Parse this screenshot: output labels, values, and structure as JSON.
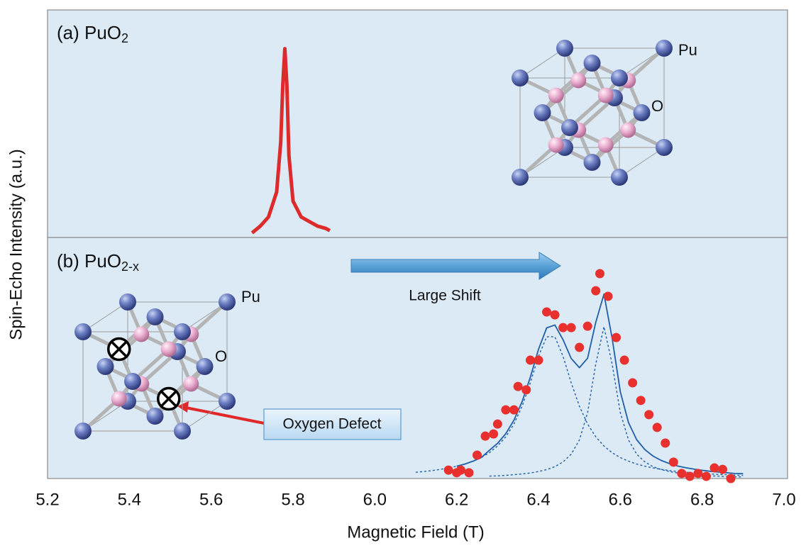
{
  "chart_data": [
    {
      "type": "line",
      "label": "(a) PuO",
      "label_sub": "2",
      "ylabel": "Spin-Echo Intensity (a.u.)",
      "xlim": [
        5.2,
        7.0
      ],
      "ylim": [
        0,
        1
      ],
      "atom_labels": [
        "Pu",
        "O"
      ],
      "series": [
        {
          "color": "#dd2a2a",
          "x": [
            5.7,
            5.72,
            5.74,
            5.76,
            5.77,
            5.775,
            5.78,
            5.785,
            5.79,
            5.8,
            5.82,
            5.84,
            5.86,
            5.88,
            5.89
          ],
          "values": [
            0.02,
            0.05,
            0.09,
            0.2,
            0.42,
            0.67,
            0.83,
            0.67,
            0.36,
            0.16,
            0.09,
            0.07,
            0.05,
            0.04,
            0.03
          ]
        }
      ]
    },
    {
      "type": "line",
      "label": "(b) PuO",
      "label_sub": "2-x",
      "xlabel": "Magnetic Field (T)",
      "xlim": [
        5.2,
        7.0
      ],
      "ylim": [
        0,
        1
      ],
      "atom_labels": [
        "Pu",
        "O"
      ],
      "annotations": [
        "Large Shift",
        "Oxygen Defect"
      ],
      "xticks": [
        {
          "value": 5.2,
          "label": "5.2"
        },
        {
          "value": 5.4,
          "label": "5.4"
        },
        {
          "value": 5.6,
          "label": "5.6"
        },
        {
          "value": 5.8,
          "label": "5.8"
        },
        {
          "value": 6.0,
          "label": "6.0"
        },
        {
          "value": 6.2,
          "label": "6.2"
        },
        {
          "value": 6.4,
          "label": "6.4"
        },
        {
          "value": 6.6,
          "label": "6.6"
        },
        {
          "value": 6.8,
          "label": "6.8"
        },
        {
          "value": 7.0,
          "label": "7.0"
        }
      ],
      "series": [
        {
          "type": "scatter",
          "color": "#e8302e",
          "x": [
            6.18,
            6.2,
            6.21,
            6.23,
            6.25,
            6.27,
            6.29,
            6.3,
            6.32,
            6.34,
            6.35,
            6.37,
            6.38,
            6.4,
            6.42,
            6.44,
            6.46,
            6.48,
            6.5,
            6.52,
            6.54,
            6.55,
            6.57,
            6.59,
            6.61,
            6.63,
            6.65,
            6.67,
            6.69,
            6.71,
            6.73,
            6.75,
            6.77,
            6.79,
            6.81,
            6.83,
            6.85,
            6.87
          ],
          "values": [
            0.035,
            0.024,
            0.035,
            0.024,
            0.097,
            0.176,
            0.185,
            0.226,
            0.285,
            0.285,
            0.382,
            0.368,
            0.491,
            0.491,
            0.691,
            0.679,
            0.626,
            0.626,
            0.544,
            0.632,
            0.779,
            0.85,
            0.756,
            0.585,
            0.491,
            0.397,
            0.324,
            0.265,
            0.212,
            0.147,
            0.068,
            0.021,
            0.009,
            0.021,
            0.009,
            0.044,
            0.038,
            0
          ]
        },
        {
          "type": "line",
          "color": "#1f5fa8",
          "x": [
            6.1,
            6.12,
            6.14,
            6.16,
            6.18,
            6.2,
            6.22,
            6.24,
            6.26,
            6.28,
            6.3,
            6.32,
            6.34,
            6.36,
            6.38,
            6.4,
            6.42,
            6.44,
            6.46,
            6.48,
            6.5,
            6.52,
            6.54,
            6.56,
            6.58,
            6.6,
            6.62,
            6.64,
            6.66,
            6.68,
            6.7,
            6.72,
            6.74,
            6.76,
            6.78,
            6.8,
            6.82,
            6.84,
            6.86,
            6.88,
            6.9
          ],
          "values": [
            null,
            null,
            null,
            null,
            null,
            0.051,
            0.06,
            0.072,
            0.087,
            0.117,
            0.146,
            0.186,
            0.242,
            0.319,
            0.42,
            0.536,
            0.625,
            0.637,
            0.576,
            0.498,
            0.46,
            0.499,
            0.648,
            0.765,
            0.582,
            0.36,
            0.232,
            0.161,
            0.12,
            0.093,
            0.075,
            0.062,
            0.052,
            0.045,
            0.039,
            0.034,
            0.03,
            0.027,
            0.024,
            0.021,
            0.02
          ]
        },
        {
          "type": "line",
          "dashed": true,
          "color": "#1f5fa8",
          "x": [
            6.1,
            6.12,
            6.14,
            6.16,
            6.18,
            6.2,
            6.22,
            6.24,
            6.26,
            6.28,
            6.3,
            6.32,
            6.34,
            6.36,
            6.38,
            6.4,
            6.42,
            6.44,
            6.46,
            6.48,
            6.5,
            6.52,
            6.54,
            6.56,
            6.58,
            6.6,
            6.62,
            6.64,
            6.66,
            6.68,
            6.7,
            6.72,
            6.74,
            6.76,
            6.78,
            6.8,
            6.82,
            6.84,
            6.86,
            6.88,
            6.9
          ],
          "values": [
            0.026,
            0.029,
            0.033,
            0.038,
            0.044,
            0.051,
            0.06,
            0.072,
            0.087,
            0.107,
            0.135,
            0.173,
            0.226,
            0.3,
            0.397,
            0.507,
            0.588,
            0.588,
            0.507,
            0.397,
            0.3,
            0.226,
            0.173,
            0.135,
            0.107,
            0.087,
            0.072,
            0.06,
            0.051,
            0.044,
            0.038,
            0.033,
            0.029,
            0.026,
            0.023,
            0.021,
            0.019,
            0.017,
            0.016,
            0.014,
            0.013
          ]
        },
        {
          "type": "line",
          "dashed": true,
          "color": "#1f5fa8",
          "x": [
            6.1,
            6.12,
            6.14,
            6.16,
            6.18,
            6.2,
            6.22,
            6.24,
            6.26,
            6.28,
            6.3,
            6.32,
            6.34,
            6.36,
            6.38,
            6.4,
            6.42,
            6.44,
            6.46,
            6.48,
            6.5,
            6.52,
            6.54,
            6.56,
            6.58,
            6.6,
            6.62,
            6.64,
            6.66,
            6.68,
            6.7,
            6.72,
            6.74,
            6.76,
            6.78,
            6.8,
            6.82,
            6.84,
            6.86,
            6.88,
            6.9
          ],
          "values": [
            null,
            null,
            null,
            null,
            null,
            null,
            null,
            null,
            null,
            0.01,
            0.011,
            0.013,
            0.016,
            0.019,
            0.023,
            0.029,
            0.037,
            0.049,
            0.069,
            0.101,
            0.16,
            0.273,
            0.475,
            0.63,
            0.475,
            0.273,
            0.16,
            0.101,
            0.069,
            0.049,
            0.037,
            0.029,
            0.023,
            0.019,
            0.016,
            0.013,
            0.011,
            0.01,
            0.008,
            0.007,
            0.007
          ]
        }
      ]
    }
  ]
}
